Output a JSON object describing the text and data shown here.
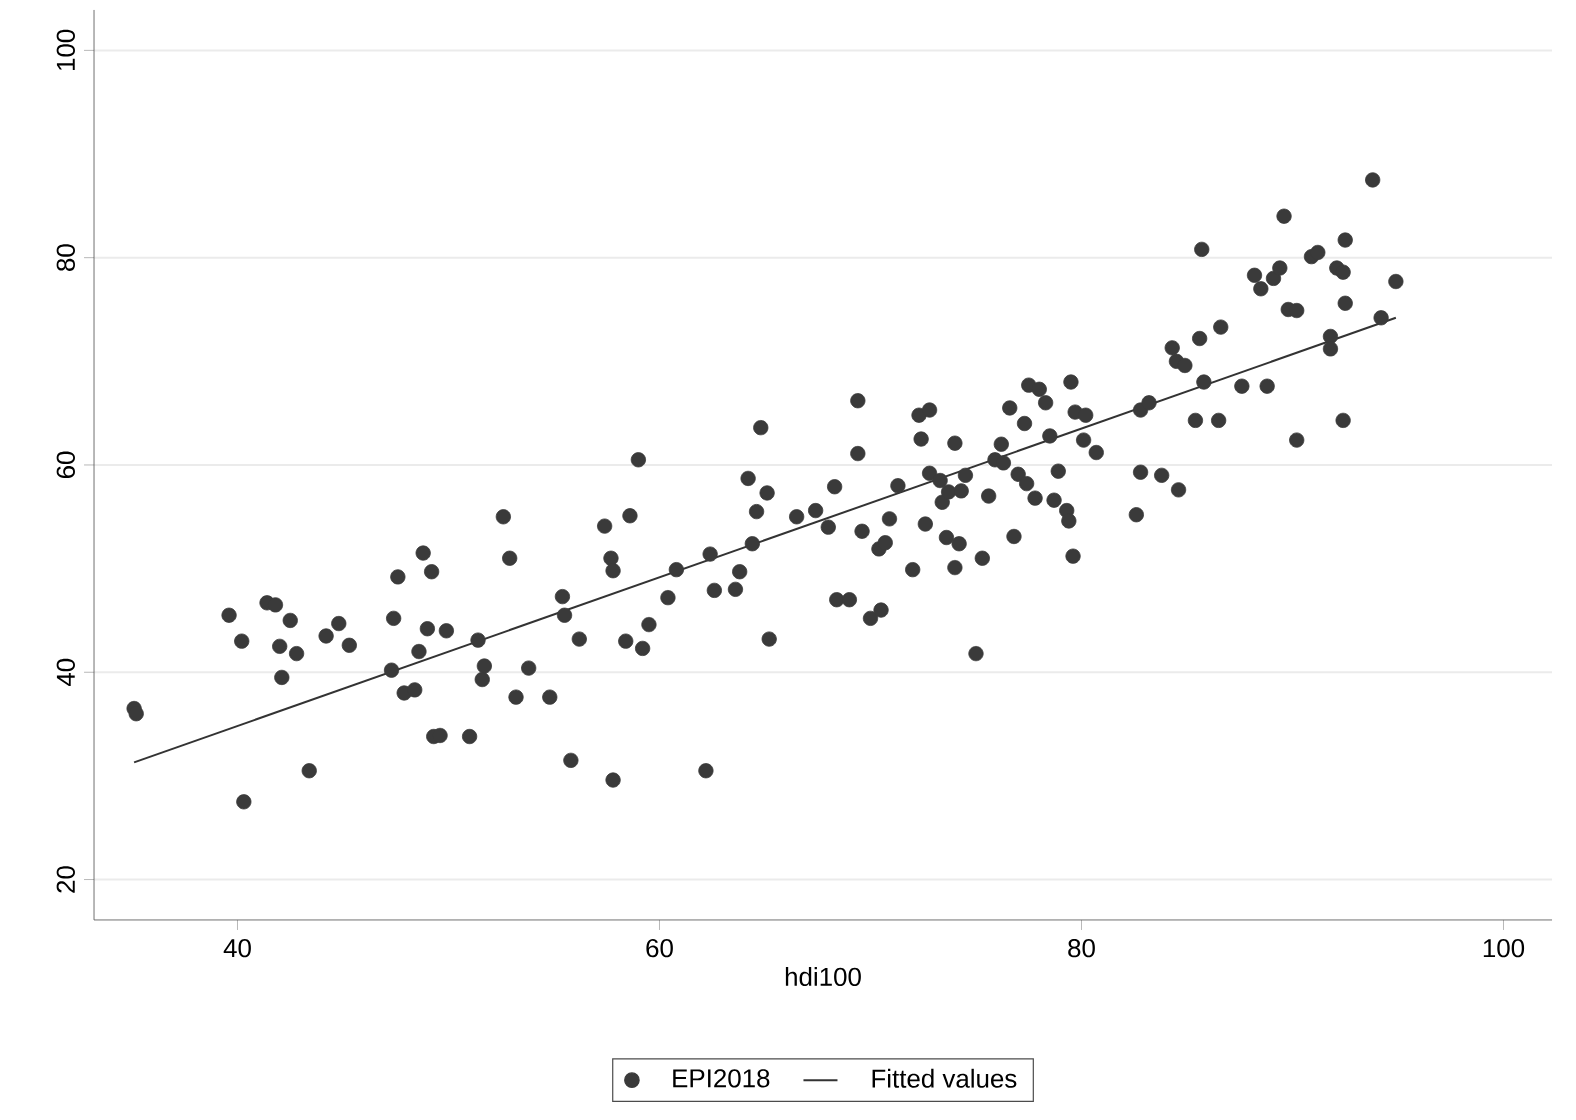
{
  "chart_data": {
    "type": "scatter",
    "xlabel": "hdi100",
    "xlim": [
      33.2,
      102.3
    ],
    "ylim": [
      16.1,
      103.9
    ],
    "xticks": [
      40,
      60,
      80,
      100
    ],
    "yticks": [
      20,
      40,
      60,
      80,
      100
    ],
    "grid": "y",
    "legend": "bottom",
    "series": [
      {
        "name": "EPI2018",
        "color": "#3a3a3a",
        "marker": "circle",
        "x": [
          35.1,
          35.2,
          39.6,
          40.2,
          40.3,
          41.4,
          41.8,
          42,
          42.1,
          42.5,
          42.8,
          43.4,
          44.2,
          44.8,
          45.3,
          47.3,
          47.4,
          47.6,
          47.9,
          48.4,
          48.6,
          48.8,
          49.2,
          49,
          49.3,
          49.6,
          49.9,
          51,
          51.4,
          51.6,
          51.7,
          52.6,
          52.9,
          53.2,
          53.8,
          54.8,
          55.4,
          55.5,
          55.8,
          56.2,
          57.4,
          57.7,
          57.8,
          57.8,
          58.4,
          58.6,
          59,
          59.2,
          59.5,
          60.4,
          60.8,
          62.2,
          62.4,
          62.6,
          63.6,
          63.8,
          64.2,
          64.4,
          64.6,
          64.8,
          65.1,
          65.2,
          66.5,
          67.4,
          68,
          68.3,
          68.4,
          69,
          69.4,
          69.4,
          69.6,
          70,
          70.4,
          70.5,
          70.7,
          70.9,
          71.3,
          72,
          72.3,
          72.4,
          72.6,
          72.8,
          72.8,
          73.3,
          73.4,
          73.6,
          73.7,
          74,
          74,
          74.2,
          74.3,
          74.5,
          75,
          75.3,
          75.6,
          75.9,
          76.2,
          76.3,
          76.6,
          76.8,
          77,
          77.3,
          77.4,
          77.5,
          77.8,
          78,
          78.3,
          78.5,
          78.7,
          78.9,
          79.3,
          79.4,
          79.5,
          79.6,
          79.7,
          80.1,
          80.2,
          80.7,
          82.6,
          82.8,
          82.8,
          83.2,
          83.8,
          84.3,
          84.5,
          84.6,
          84.9,
          85.4,
          85.6,
          85.7,
          85.8,
          86.5,
          86.6,
          87.6,
          88.2,
          88.5,
          88.8,
          89.1,
          89.4,
          89.6,
          89.8,
          90.2,
          90.2,
          90.9,
          91.2,
          91.8,
          91.8,
          92.1,
          92.4,
          92.4,
          92.5,
          92.5,
          93.8,
          94.9,
          94.2
        ],
        "values": [
          36.5,
          36,
          45.5,
          43,
          27.5,
          46.7,
          46.5,
          42.5,
          39.5,
          45,
          41.8,
          30.5,
          43.5,
          44.7,
          42.6,
          40.2,
          45.2,
          49.2,
          38,
          38.3,
          42,
          51.5,
          49.7,
          44.2,
          33.8,
          33.9,
          44,
          33.8,
          43.1,
          39.3,
          40.6,
          55,
          51,
          37.6,
          40.4,
          37.6,
          47.3,
          45.5,
          31.5,
          43.2,
          54.1,
          51,
          49.8,
          29.6,
          43,
          55.1,
          60.5,
          42.3,
          44.6,
          47.2,
          49.9,
          30.5,
          51.4,
          47.9,
          48,
          49.7,
          58.7,
          52.4,
          55.5,
          63.6,
          57.3,
          43.2,
          55,
          55.6,
          54,
          57.9,
          47,
          47,
          61.1,
          66.2,
          53.6,
          45.2,
          51.9,
          46,
          52.5,
          54.8,
          58,
          49.9,
          64.8,
          62.5,
          54.3,
          59.2,
          65.3,
          58.5,
          56.4,
          53,
          57.4,
          50.1,
          62.1,
          52.4,
          57.5,
          59,
          41.8,
          51,
          57,
          60.5,
          62,
          60.2,
          65.5,
          53.1,
          59.1,
          64,
          58.2,
          67.7,
          56.8,
          67.3,
          66,
          62.8,
          56.6,
          59.4,
          55.6,
          54.6,
          68,
          51.2,
          65.1,
          62.4,
          64.8,
          61.2,
          55.2,
          59.3,
          65.3,
          66,
          59,
          71.3,
          70,
          57.6,
          69.6,
          64.3,
          72.2,
          80.8,
          68,
          64.3,
          73.3,
          67.6,
          78.3,
          77,
          67.6,
          78,
          79,
          84,
          75,
          74.9,
          62.4,
          80.1,
          80.5,
          72.4,
          71.2,
          79,
          78.6,
          64.3,
          81.7,
          75.6,
          87.5,
          77.7,
          74.2
        ]
      },
      {
        "name": "Fitted values",
        "type": "line",
        "marker": "none",
        "color": "#333333",
        "x": [
          35.1,
          94.9
        ],
        "values": [
          31.3,
          74.2
        ]
      }
    ]
  }
}
